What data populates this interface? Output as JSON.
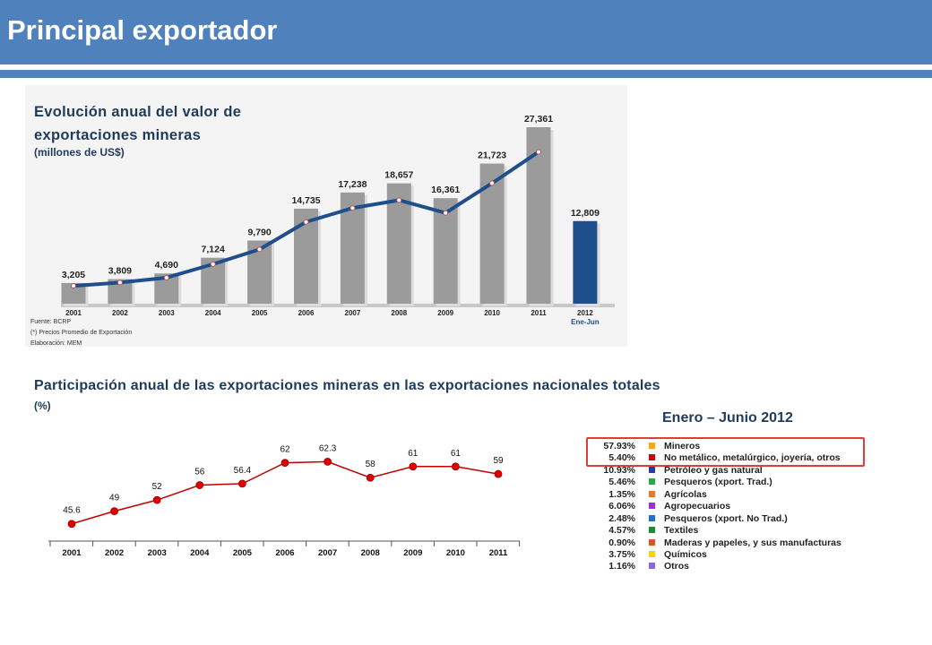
{
  "header": {
    "title": "Principal exportador"
  },
  "chart_data": [
    {
      "type": "bar",
      "title": "Evolución anual del valor de exportaciones mineras",
      "subtitle": "(millones de US$)",
      "categories": [
        "2001",
        "2002",
        "2003",
        "2004",
        "2005",
        "2006",
        "2007",
        "2008",
        "2009",
        "2010",
        "2011",
        "2012"
      ],
      "values": [
        3205,
        3809,
        4690,
        7124,
        9790,
        14735,
        17238,
        18657,
        16361,
        21723,
        27361,
        12809
      ],
      "value_labels": [
        "3,205",
        "3,809",
        "4,690",
        "7,124",
        "9,790",
        "14,735",
        "17,238",
        "18,657",
        "16,361",
        "21,723",
        "27,361",
        "12,809"
      ],
      "x_sublabel_last": "Ene-Jun",
      "ylim": [
        0,
        30000
      ],
      "line_overlay": true,
      "colors": {
        "bar": "#9b9b9b",
        "bar_highlight": "#1f4e8c",
        "line": "#1f4e8c"
      },
      "notes": [
        "Fuente: BCRP",
        "(*) Precios Promedio de Exportación",
        "Elaboración: MEM"
      ]
    },
    {
      "type": "line",
      "title": "Participación anual de las exportaciones mineras en las exportaciones nacionales totales",
      "subtitle": "(%)",
      "categories": [
        "2001",
        "2002",
        "2003",
        "2004",
        "2005",
        "2006",
        "2007",
        "2008",
        "2009",
        "2010",
        "2011"
      ],
      "values": [
        45.6,
        49,
        52,
        56,
        56.4,
        62,
        62.3,
        58,
        61,
        61,
        59
      ],
      "value_labels": [
        "45.6",
        "49",
        "52",
        "56",
        "56.4",
        "62",
        "62.3",
        "58",
        "61",
        "61",
        "59"
      ],
      "ylim": [
        40,
        66
      ],
      "colors": {
        "line": "#c00000",
        "marker": "#e00000"
      }
    },
    {
      "type": "pie",
      "title": "Enero – Junio 2012",
      "slices": [
        {
          "pct": "57.93%",
          "label": "Mineros",
          "color": "#f5a623"
        },
        {
          "pct": "5.40%",
          "label": "No metálico, metalúrgico, joyería, otros",
          "color": "#d0021b"
        },
        {
          "pct": "10.93%",
          "label": "Petróleo y gas natural",
          "color": "#1f3fa0"
        },
        {
          "pct": "5.46%",
          "label": "Pesqueros (xport. Trad.)",
          "color": "#2aa84a"
        },
        {
          "pct": "1.35%",
          "label": "Agrícolas",
          "color": "#f0781e"
        },
        {
          "pct": "6.06%",
          "label": "Agropecuarios",
          "color": "#9b30d9"
        },
        {
          "pct": "2.48%",
          "label": "Pesqueros (xport. No Trad.)",
          "color": "#1f6fd0"
        },
        {
          "pct": "4.57%",
          "label": "Textiles",
          "color": "#1f8a3a"
        },
        {
          "pct": "0.90%",
          "label": "Maderas y papeles, y sus manufacturas",
          "color": "#e0522a"
        },
        {
          "pct": "3.75%",
          "label": "Químicos",
          "color": "#f5d21e"
        },
        {
          "pct": "1.16%",
          "label": "Otros",
          "color": "#8a6ad9"
        }
      ]
    }
  ]
}
